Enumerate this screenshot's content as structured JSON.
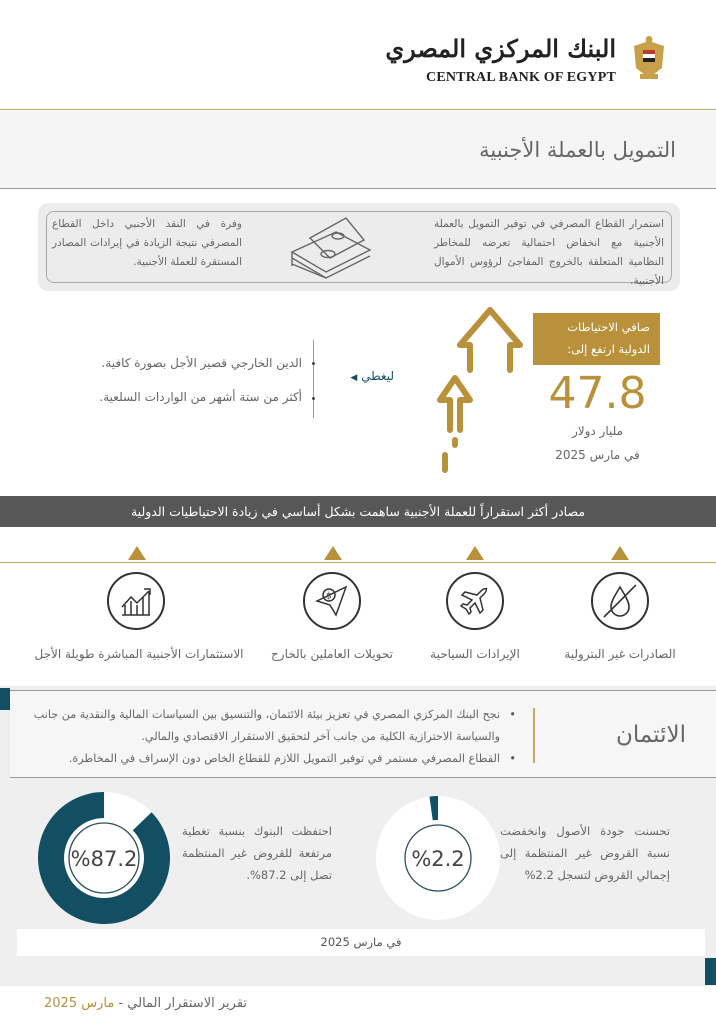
{
  "header": {
    "logo_ar": "البنك المركزي المصري",
    "logo_en": "CENTRAL BANK OF EGYPT"
  },
  "page_title": "التمويل بالعملة الأجنبية",
  "info_box": {
    "right_text": "استمرار القطاع المصرفي في توفير التمويل بالعملة الأجنبية مع انخفاض احتمالية تعرضه للمخاطر النظامية المتعلقة بالخروج المفاجئ لرؤوس الأموال الأجنبية.",
    "left_text": "وفرة في النقد الأجنبي داخل القطاع المصرفي نتيجة الزيادة في إيرادات المصادر المستقرة للعملة الأجنبية.",
    "icon": "money-stack-icon"
  },
  "reserves": {
    "label": "صافي الاحتياطات الدولية ارتفع إلى:",
    "value": "47.8",
    "unit": "مليار دولار",
    "date": "في مارس 2025",
    "covers_label": "ليغطي",
    "covers_items": [
      "الدين الخارجي قصير الأجل بصورة كافية.",
      "أكثر من ستة أشهر من الواردات السلعية."
    ]
  },
  "sources": {
    "title": "مصادر أكثر استقراراً للعملة الأجنبية ساهمت بشكل أساسي في زيادة الاحتياطيات الدولية",
    "items": [
      {
        "label": "الصادرات غير البترولية",
        "icon": "no-oil-drop-icon"
      },
      {
        "label": "الإيرادات السياحية",
        "icon": "airplane-icon"
      },
      {
        "label": "تحويلات العاملين بالخارج",
        "icon": "money-transfer-icon"
      },
      {
        "label": "الاستثمارات الأجنبية المباشرة طويلة الأجل",
        "icon": "growth-chart-icon"
      }
    ]
  },
  "credit": {
    "title": "الائتمان",
    "items": [
      "نجح البنك المركزي المصري في تعزيز بيئة الائتمان، والتنسيق بين السياسات المالية والنقدية من جانب والسياسة الاحترازية الكلية من جانب آخر لتحقيق الاستقرار الاقتصادي والمالي.",
      "القطاع المصرفي مستمر في توفير التمويل اللازم للقطاع الخاص دون الإسراف في المخاطرة."
    ]
  },
  "donuts": [
    {
      "label": "%2.2",
      "percent": 2.2,
      "text": "تحسنت جودة الأصول وانخفضت نسبة القروض غير المنتظمة إلى إجمالي القروض لتسجل 2.2%"
    },
    {
      "label": "%87.2",
      "percent": 87.2,
      "text": "احتفظت البنوك بنسبة تغطية مرتفعة للقروض غير المنتظمة تصل إلى 87.2%."
    }
  ],
  "date_bar": "في مارس 2025",
  "footer": {
    "report": "تقرير الاستقرار المالي - ",
    "date": "مارس 2025"
  },
  "colors": {
    "gold": "#b8913a",
    "teal": "#134f63",
    "bar_gray": "#575757"
  }
}
